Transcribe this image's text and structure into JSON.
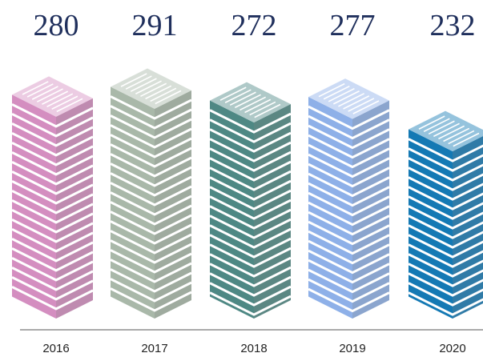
{
  "chart_data": {
    "type": "building-bar",
    "categories": [
      "2016",
      "2017",
      "2018",
      "2019",
      "2020"
    ],
    "values": [
      280,
      291,
      272,
      277,
      232
    ],
    "colors": [
      "#d48ec0",
      "#a9b8a9",
      "#4e8884",
      "#8eb0e8",
      "#1479b4"
    ]
  }
}
